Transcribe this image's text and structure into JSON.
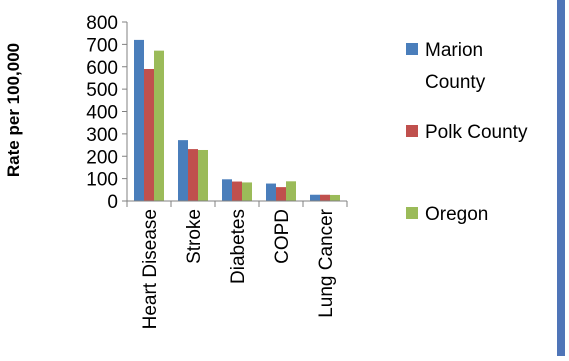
{
  "chart_data": {
    "type": "bar",
    "categories": [
      "Heart Disease",
      "Stroke",
      "Diabetes",
      "COPD",
      "Lung Cancer"
    ],
    "series": [
      {
        "name": "Marion County",
        "values": [
          720,
          272,
          97,
          78,
          28
        ],
        "color": "#4a7ebb"
      },
      {
        "name": "Polk County",
        "values": [
          590,
          232,
          87,
          62,
          28
        ],
        "color": "#c0504d"
      },
      {
        "name": "Oregon",
        "values": [
          672,
          228,
          83,
          88,
          27
        ],
        "color": "#9bbb59"
      }
    ],
    "ylabel": "Rate per 100,000",
    "ylim": [
      0,
      800
    ],
    "yticks": [
      0,
      100,
      200,
      300,
      400,
      500,
      600,
      700,
      800
    ],
    "grid": false,
    "legend_position": "right"
  },
  "decor": {
    "right_accent_color": "#4f75b8"
  }
}
